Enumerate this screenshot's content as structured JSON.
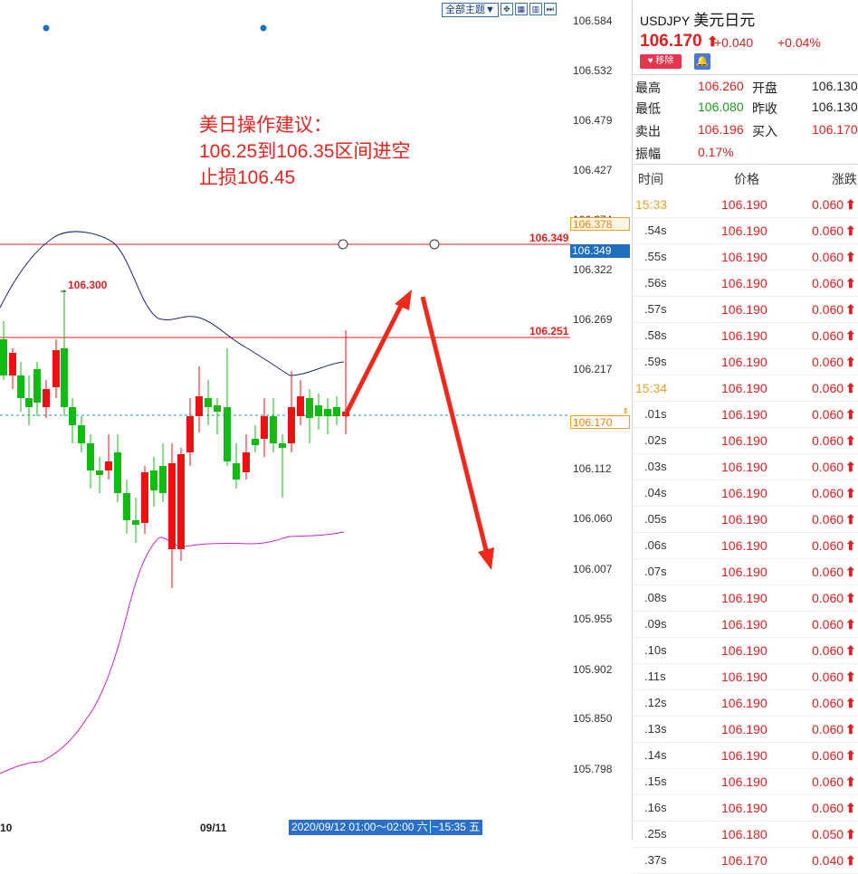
{
  "toolbar": {
    "theme_label": "全部主题▼",
    "icons": [
      "expand-icon",
      "grid-icon",
      "layout-icon",
      "forward-icon"
    ]
  },
  "annotation": {
    "line1": "美日操作建议：",
    "line2": "106.25到106.35区间进空",
    "line3": "止损106.45"
  },
  "price_axis": {
    "ticks": [
      "106.584",
      "106.532",
      "106.479",
      "106.427",
      "106.374",
      "106.322",
      "106.269",
      "106.217",
      "106.112",
      "106.060",
      "106.007",
      "105.955",
      "105.902",
      "105.850",
      "105.798"
    ],
    "label_378": "106.378",
    "label_349": "106.349",
    "label_current": "106.170"
  },
  "chart_labels": {
    "hline_349": "106.349",
    "hline_251": "106.251",
    "high_marker": "106.300"
  },
  "xaxis": {
    "left_label": "10",
    "mid_label": "09/11",
    "crosshair_date": "2020/09/12 01:00～02:00 六",
    "crosshair_time": "~15:35 五"
  },
  "quote": {
    "symbol": "USDJPY",
    "name_cn": "美元日元",
    "price": "106.170",
    "change": "+0.040",
    "change_pct": "+0.04%",
    "remove_label": "移除",
    "colors": {
      "up": "#e02020",
      "down": "#169c1a",
      "accent": "#2a6fc9"
    },
    "stats": [
      {
        "l1": "最高",
        "v1": "106.260",
        "c1": "red",
        "l2": "开盘",
        "v2": "106.130"
      },
      {
        "l1": "最低",
        "v1": "106.080",
        "c1": "green",
        "l2": "昨收",
        "v2": "106.130"
      },
      {
        "l1": "卖出",
        "v1": "106.196",
        "c1": "red",
        "l2": "买入",
        "v2": "106.170",
        "c2": "red"
      },
      {
        "l1": "振幅",
        "v1": "0.17%",
        "c1": "red",
        "l2": "",
        "v2": ""
      }
    ],
    "headers": {
      "time": "时间",
      "price": "价格",
      "change": "涨跌"
    },
    "ticks": [
      {
        "time": "15:33",
        "major": true,
        "price": "106.190",
        "chg": "0.060"
      },
      {
        "time": ".54s",
        "price": "106.190",
        "chg": "0.060"
      },
      {
        "time": ".55s",
        "price": "106.190",
        "chg": "0.060"
      },
      {
        "time": ".56s",
        "price": "106.190",
        "chg": "0.060"
      },
      {
        "time": ".57s",
        "price": "106.190",
        "chg": "0.060"
      },
      {
        "time": ".58s",
        "price": "106.190",
        "chg": "0.060"
      },
      {
        "time": ".59s",
        "price": "106.190",
        "chg": "0.060"
      },
      {
        "time": "15:34",
        "major": true,
        "price": "106.190",
        "chg": "0.060"
      },
      {
        "time": ".01s",
        "price": "106.190",
        "chg": "0.060"
      },
      {
        "time": ".02s",
        "price": "106.190",
        "chg": "0.060"
      },
      {
        "time": ".03s",
        "price": "106.190",
        "chg": "0.060"
      },
      {
        "time": ".04s",
        "price": "106.190",
        "chg": "0.060"
      },
      {
        "time": ".05s",
        "price": "106.190",
        "chg": "0.060"
      },
      {
        "time": ".06s",
        "price": "106.190",
        "chg": "0.060"
      },
      {
        "time": ".07s",
        "price": "106.190",
        "chg": "0.060"
      },
      {
        "time": ".08s",
        "price": "106.190",
        "chg": "0.060"
      },
      {
        "time": ".09s",
        "price": "106.190",
        "chg": "0.060"
      },
      {
        "time": ".10s",
        "price": "106.190",
        "chg": "0.060"
      },
      {
        "time": ".11s",
        "price": "106.190",
        "chg": "0.060"
      },
      {
        "time": ".12s",
        "price": "106.190",
        "chg": "0.060"
      },
      {
        "time": ".13s",
        "price": "106.190",
        "chg": "0.060"
      },
      {
        "time": ".14s",
        "price": "106.190",
        "chg": "0.060"
      },
      {
        "time": ".15s",
        "price": "106.190",
        "chg": "0.060"
      },
      {
        "time": ".16s",
        "price": "106.190",
        "chg": "0.060"
      },
      {
        "time": ".25s",
        "price": "106.180",
        "chg": "0.050"
      },
      {
        "time": ".37s",
        "price": "106.170",
        "chg": "0.040"
      }
    ]
  }
}
